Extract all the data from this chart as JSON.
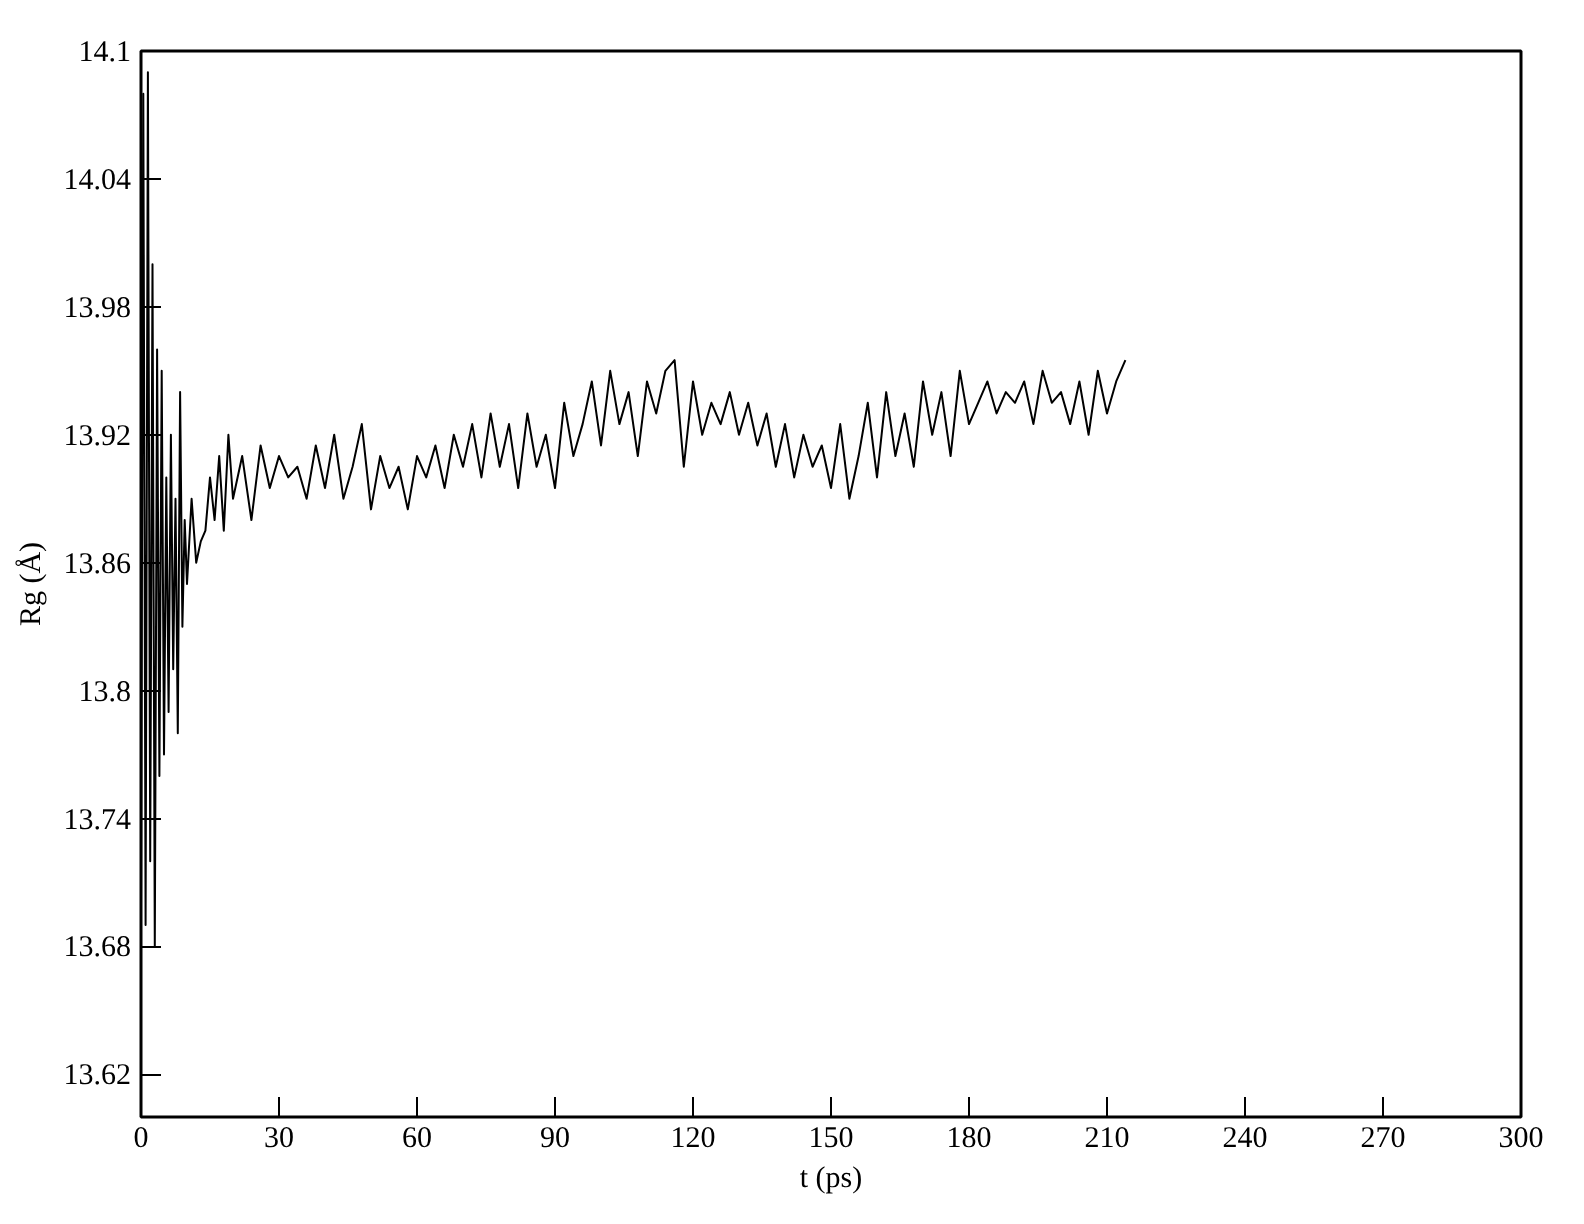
{
  "chart_data": {
    "type": "line",
    "xlabel": "t (ps)",
    "ylabel": "Rg (Å)",
    "xlim": [
      0,
      300
    ],
    "xticks": [
      0,
      30,
      60,
      90,
      120,
      150,
      180,
      210,
      240,
      270,
      300
    ],
    "ylim": [
      13.6,
      14.1
    ],
    "yticks": [
      13.62,
      13.68,
      13.74,
      13.8,
      13.86,
      13.92,
      13.98,
      14.04,
      14.1
    ],
    "grid": false,
    "marker": "none",
    "line_style": "solid",
    "series": [
      {
        "color": "#000000",
        "x": [
          0,
          0.5,
          1,
          1.5,
          2,
          2.5,
          3,
          3.5,
          4,
          4.5,
          5,
          5.5,
          6,
          6.5,
          7,
          7.5,
          8,
          8.5,
          9,
          9.5,
          10,
          11,
          12,
          13,
          14,
          15,
          16,
          17,
          18,
          19,
          20,
          22,
          24,
          26,
          28,
          30,
          32,
          34,
          36,
          38,
          40,
          42,
          44,
          46,
          48,
          50,
          52,
          54,
          56,
          58,
          60,
          62,
          64,
          66,
          68,
          70,
          72,
          74,
          76,
          78,
          80,
          82,
          84,
          86,
          88,
          90,
          92,
          94,
          96,
          98,
          100,
          102,
          104,
          106,
          108,
          110,
          112,
          114,
          116,
          118,
          120,
          122,
          124,
          126,
          128,
          130,
          132,
          134,
          136,
          138,
          140,
          142,
          144,
          146,
          148,
          150,
          152,
          154,
          156,
          158,
          160,
          162,
          164,
          166,
          168,
          170,
          172,
          174,
          176,
          178,
          180,
          182,
          184,
          186,
          188,
          190,
          192,
          194,
          196,
          198,
          200,
          202,
          204,
          206,
          208,
          210,
          212,
          214
        ],
        "values": [
          13.7,
          14.08,
          13.69,
          14.09,
          13.72,
          14.0,
          13.68,
          13.96,
          13.76,
          13.95,
          13.77,
          13.9,
          13.79,
          13.92,
          13.81,
          13.89,
          13.78,
          13.94,
          13.83,
          13.88,
          13.85,
          13.89,
          13.86,
          13.87,
          13.875,
          13.9,
          13.88,
          13.91,
          13.875,
          13.92,
          13.89,
          13.91,
          13.88,
          13.915,
          13.895,
          13.91,
          13.9,
          13.905,
          13.89,
          13.915,
          13.895,
          13.92,
          13.89,
          13.905,
          13.925,
          13.885,
          13.91,
          13.895,
          13.905,
          13.885,
          13.91,
          13.9,
          13.915,
          13.895,
          13.92,
          13.905,
          13.925,
          13.9,
          13.93,
          13.905,
          13.925,
          13.895,
          13.93,
          13.905,
          13.92,
          13.895,
          13.935,
          13.91,
          13.925,
          13.945,
          13.915,
          13.95,
          13.925,
          13.94,
          13.91,
          13.945,
          13.93,
          13.95,
          13.955,
          13.905,
          13.945,
          13.92,
          13.935,
          13.925,
          13.94,
          13.92,
          13.935,
          13.915,
          13.93,
          13.905,
          13.925,
          13.9,
          13.92,
          13.905,
          13.915,
          13.895,
          13.925,
          13.89,
          13.91,
          13.935,
          13.9,
          13.94,
          13.91,
          13.93,
          13.905,
          13.945,
          13.92,
          13.94,
          13.91,
          13.95,
          13.925,
          13.935,
          13.945,
          13.93,
          13.94,
          13.935,
          13.945,
          13.925,
          13.95,
          13.935,
          13.94,
          13.925,
          13.945,
          13.92,
          13.95,
          13.93,
          13.945,
          13.955
        ]
      }
    ]
  }
}
